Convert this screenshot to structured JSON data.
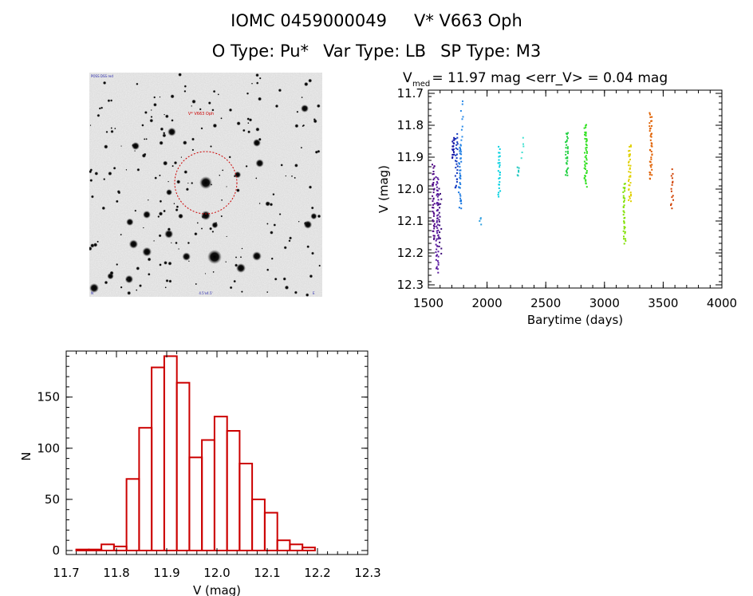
{
  "header": {
    "id_label": "IOMC 0459000049",
    "star_name": "V* V663 Oph",
    "otype": "O Type: Pu*",
    "vartype": "Var Type: LB",
    "sptype": "SP Type: M3"
  },
  "image": {
    "target_label": "V* V663 Oph",
    "corner_tl": "POSS DSS red",
    "corner_bl": "N",
    "corner_bc": "4.5'x4.5'",
    "corner_br": "E"
  },
  "lightcurve": {
    "title_prefix": "V",
    "title_sub": "med",
    "title_rest": " = 11.97 mag <err_V> = 0.04 mag",
    "xlabel": "Barytime (days)",
    "ylabel": "V (mag)"
  },
  "chart_data": [
    {
      "type": "scatter",
      "title": "Vmed = 11.97 mag <err_V> = 0.04 mag",
      "xlabel": "Barytime (days)",
      "ylabel": "V (mag)",
      "xlim": [
        1500,
        4000
      ],
      "ylim": [
        12.31,
        11.69
      ],
      "xticks": [
        1500,
        2000,
        2500,
        3000,
        3500,
        4000
      ],
      "yticks": [
        11.7,
        11.8,
        11.9,
        12.0,
        12.1,
        12.2,
        12.3
      ],
      "groups": [
        {
          "x": 1545,
          "ymin": 11.92,
          "ymax": 12.16,
          "n": 40,
          "color": "#4b0082"
        },
        {
          "x": 1575,
          "ymin": 11.96,
          "ymax": 12.26,
          "n": 55,
          "color": "#5a1aa0"
        },
        {
          "x": 1600,
          "ymin": 12.0,
          "ymax": 12.2,
          "n": 20,
          "color": "#3b0a78"
        },
        {
          "x": 1715,
          "ymin": 11.84,
          "ymax": 11.9,
          "n": 20,
          "color": "#1a1aa8"
        },
        {
          "x": 1740,
          "ymin": 11.83,
          "ymax": 12.0,
          "n": 25,
          "color": "#1038c0"
        },
        {
          "x": 1770,
          "ymin": 11.86,
          "ymax": 12.06,
          "n": 35,
          "color": "#1a78e0"
        },
        {
          "x": 1785,
          "ymin": 11.72,
          "ymax": 11.9,
          "n": 12,
          "color": "#2a8ae8"
        },
        {
          "x": 1940,
          "ymin": 12.09,
          "ymax": 12.11,
          "n": 4,
          "color": "#30a0e0"
        },
        {
          "x": 2105,
          "ymin": 11.87,
          "ymax": 12.02,
          "n": 25,
          "color": "#00d0e0"
        },
        {
          "x": 2270,
          "ymin": 11.93,
          "ymax": 11.96,
          "n": 6,
          "color": "#20c8c0"
        },
        {
          "x": 2300,
          "ymin": 11.84,
          "ymax": 11.9,
          "n": 5,
          "color": "#40e0d0"
        },
        {
          "x": 2680,
          "ymin": 11.82,
          "ymax": 11.96,
          "n": 30,
          "color": "#20d040"
        },
        {
          "x": 2840,
          "ymin": 11.8,
          "ymax": 11.99,
          "n": 45,
          "color": "#30e020"
        },
        {
          "x": 3170,
          "ymin": 11.98,
          "ymax": 12.17,
          "n": 35,
          "color": "#80e000"
        },
        {
          "x": 3215,
          "ymin": 11.86,
          "ymax": 12.04,
          "n": 35,
          "color": "#e0d000"
        },
        {
          "x": 3395,
          "ymin": 11.76,
          "ymax": 11.97,
          "n": 40,
          "color": "#e06000"
        },
        {
          "x": 3575,
          "ymin": 11.94,
          "ymax": 12.06,
          "n": 15,
          "color": "#d04000"
        }
      ]
    },
    {
      "type": "bar",
      "title": "",
      "xlabel": "V (mag)",
      "ylabel": "N",
      "xlim": [
        11.7,
        12.3
      ],
      "ylim": [
        0,
        195
      ],
      "xticks": [
        11.7,
        11.8,
        11.9,
        12.0,
        12.1,
        12.2,
        12.3
      ],
      "yticks": [
        0,
        50,
        100,
        150
      ],
      "bin_start": 11.72,
      "bin_width": 0.025,
      "values": [
        1,
        1,
        6,
        4,
        70,
        120,
        179,
        190,
        164,
        91,
        108,
        131,
        117,
        85,
        50,
        37,
        10,
        6,
        3
      ],
      "color": "#cc0000"
    }
  ]
}
